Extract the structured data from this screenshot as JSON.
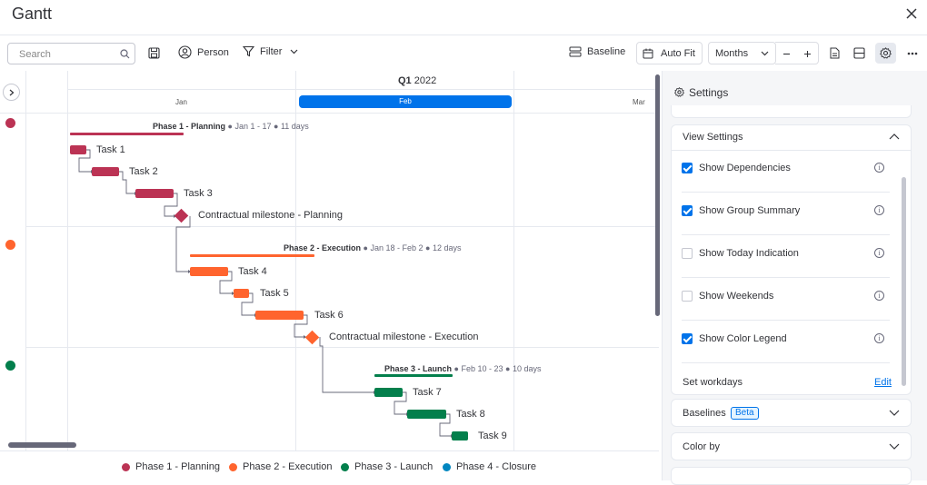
{
  "header": {
    "title": "Gantt"
  },
  "toolbar": {
    "search_placeholder": "Search",
    "person_label": "Person",
    "filter_label": "Filter",
    "baseline_label": "Baseline",
    "autofit_label": "Auto Fit",
    "zoom_value": "Months"
  },
  "timeline": {
    "quarter_label": "Q1",
    "year_label": "2022",
    "months": [
      "Jan",
      "Feb",
      "Mar"
    ],
    "selected_month": "Feb"
  },
  "groups": [
    {
      "name": "Phase 1 - Planning",
      "dates": "Jan 1 - 17",
      "duration": "11 days",
      "color": "#bb3354",
      "tasks": [
        "Task 1",
        "Task 2",
        "Task 3"
      ],
      "milestone": "Contractual milestone - Planning"
    },
    {
      "name": "Phase 2 - Execution",
      "dates": "Jan 18 - Feb 2",
      "duration": "12 days",
      "color": "#ff642e",
      "tasks": [
        "Task 4",
        "Task 5",
        "Task 6"
      ],
      "milestone": "Contractual milestone - Execution"
    },
    {
      "name": "Phase 3 - Launch",
      "dates": "Feb 10 - 23",
      "duration": "10 days",
      "color": "#037f4c",
      "tasks": [
        "Task 7",
        "Task 8",
        "Task 9"
      ]
    }
  ],
  "legend": [
    {
      "label": "Phase 1 - Planning",
      "color": "#bb3354"
    },
    {
      "label": "Phase 2 - Execution",
      "color": "#ff642e"
    },
    {
      "label": "Phase 3 - Launch",
      "color": "#037f4c"
    },
    {
      "label": "Phase 4 - Closure",
      "color": "#0086c0"
    }
  ],
  "settings": {
    "title": "Settings",
    "view_settings_label": "View Settings",
    "options": [
      {
        "label": "Show Dependencies",
        "checked": true
      },
      {
        "label": "Show Group Summary",
        "checked": true
      },
      {
        "label": "Show Today Indication",
        "checked": false
      },
      {
        "label": "Show Weekends",
        "checked": false
      },
      {
        "label": "Show Color Legend",
        "checked": true
      }
    ],
    "workdays_label": "Set workdays",
    "edit_label": "Edit",
    "baselines_label": "Baselines",
    "beta_label": "Beta",
    "color_by_label": "Color by"
  }
}
